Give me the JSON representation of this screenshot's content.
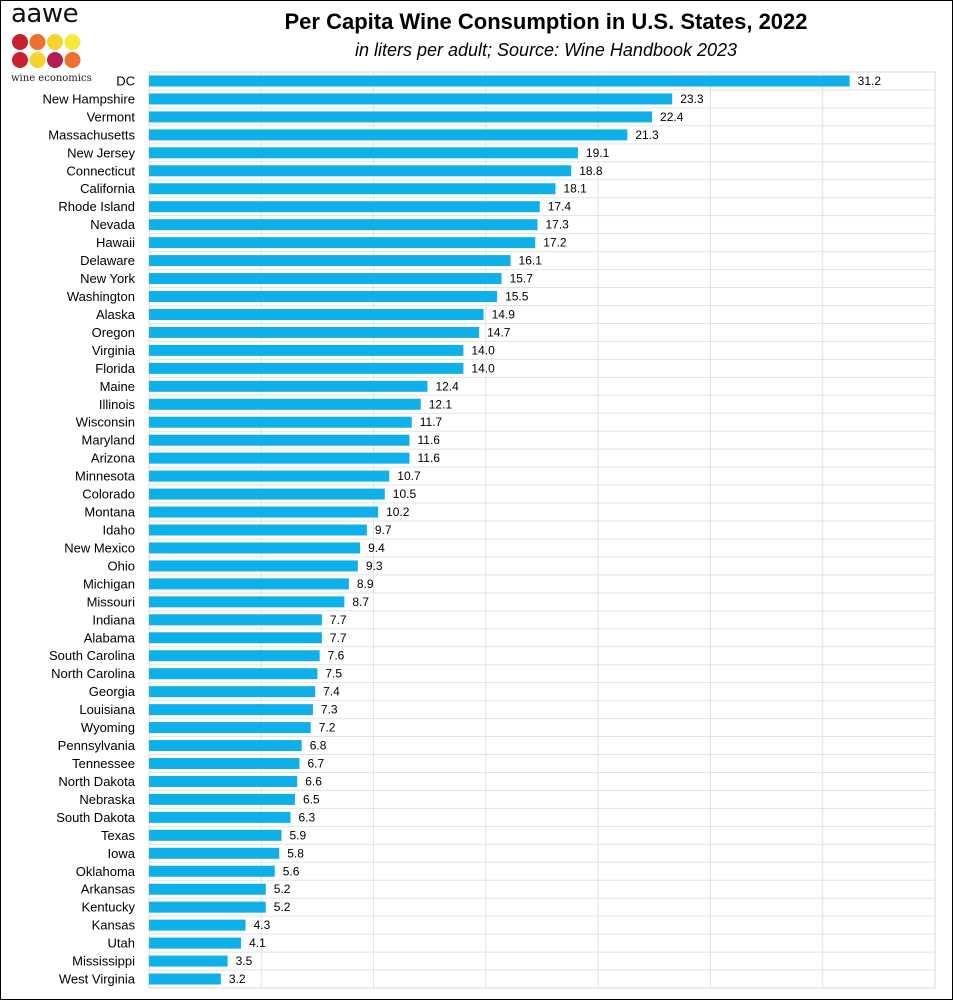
{
  "logo": {
    "text": "aawe",
    "tagline": "wine economics",
    "dot_colors": [
      "#c8202f",
      "#ef6f2e",
      "#f5d22c",
      "#f7e93a",
      "#c8202f",
      "#f5d22c",
      "#b11e52",
      "#ef6f2e"
    ]
  },
  "chart_data": {
    "type": "bar",
    "orientation": "horizontal",
    "title": "Per Capita Wine Consumption in U.S. States, 2022",
    "subtitle": "in liters per adult; Source: Wine Handbook 2023",
    "xlim": [
      0,
      35
    ],
    "grid": true,
    "bar_color": "#0fb0ea",
    "categories": [
      "DC",
      "New Hampshire",
      "Vermont",
      "Massachusetts",
      "New Jersey",
      "Connecticut",
      "California",
      "Rhode Island",
      "Nevada",
      "Hawaii",
      "Delaware",
      "New York",
      "Washington",
      "Alaska",
      "Oregon",
      "Virginia",
      "Florida",
      "Maine",
      "Illinois",
      "Wisconsin",
      "Maryland",
      "Arizona",
      "Minnesota",
      "Colorado",
      "Montana",
      "Idaho",
      "New Mexico",
      "Ohio",
      "Michigan",
      "Missouri",
      "Indiana",
      "Alabama",
      "South Carolina",
      "North Carolina",
      "Georgia",
      "Louisiana",
      "Wyoming",
      "Pennsylvania",
      "Tennessee",
      "North Dakota",
      "Nebraska",
      "South Dakota",
      "Texas",
      "Iowa",
      "Oklahoma",
      "Arkansas",
      "Kentucky",
      "Kansas",
      "Utah",
      "Mississippi",
      "West Virginia"
    ],
    "values": [
      31.2,
      23.3,
      22.4,
      21.3,
      19.1,
      18.8,
      18.1,
      17.4,
      17.3,
      17.2,
      16.1,
      15.7,
      15.5,
      14.9,
      14.7,
      14.0,
      14.0,
      12.4,
      12.1,
      11.7,
      11.6,
      11.6,
      10.7,
      10.5,
      10.2,
      9.7,
      9.4,
      9.3,
      8.9,
      8.7,
      7.7,
      7.7,
      7.6,
      7.5,
      7.4,
      7.3,
      7.2,
      6.8,
      6.7,
      6.6,
      6.5,
      6.3,
      5.9,
      5.8,
      5.6,
      5.2,
      5.2,
      4.3,
      4.1,
      3.5,
      3.2
    ],
    "value_labels": [
      "31.2",
      "23.3",
      "22.4",
      "21.3",
      "19.1",
      "18.8",
      "18.1",
      "17.4",
      "17.3",
      "17.2",
      "16.1",
      "15.7",
      "15.5",
      "14.9",
      "14.7",
      "14.0",
      "14.0",
      "12.4",
      "12.1",
      "11.7",
      "11.6",
      "11.6",
      "10.7",
      "10.5",
      "10.2",
      "9.7",
      "9.4",
      "9.3",
      "8.9",
      "8.7",
      "7.7",
      "7.7",
      "7.6",
      "7.5",
      "7.4",
      "7.3",
      "7.2",
      "6.8",
      "6.7",
      "6.6",
      "6.5",
      "6.3",
      "5.9",
      "5.8",
      "5.6",
      "5.2",
      "5.2",
      "4.3",
      "4.1",
      "3.5",
      "3.2"
    ]
  }
}
